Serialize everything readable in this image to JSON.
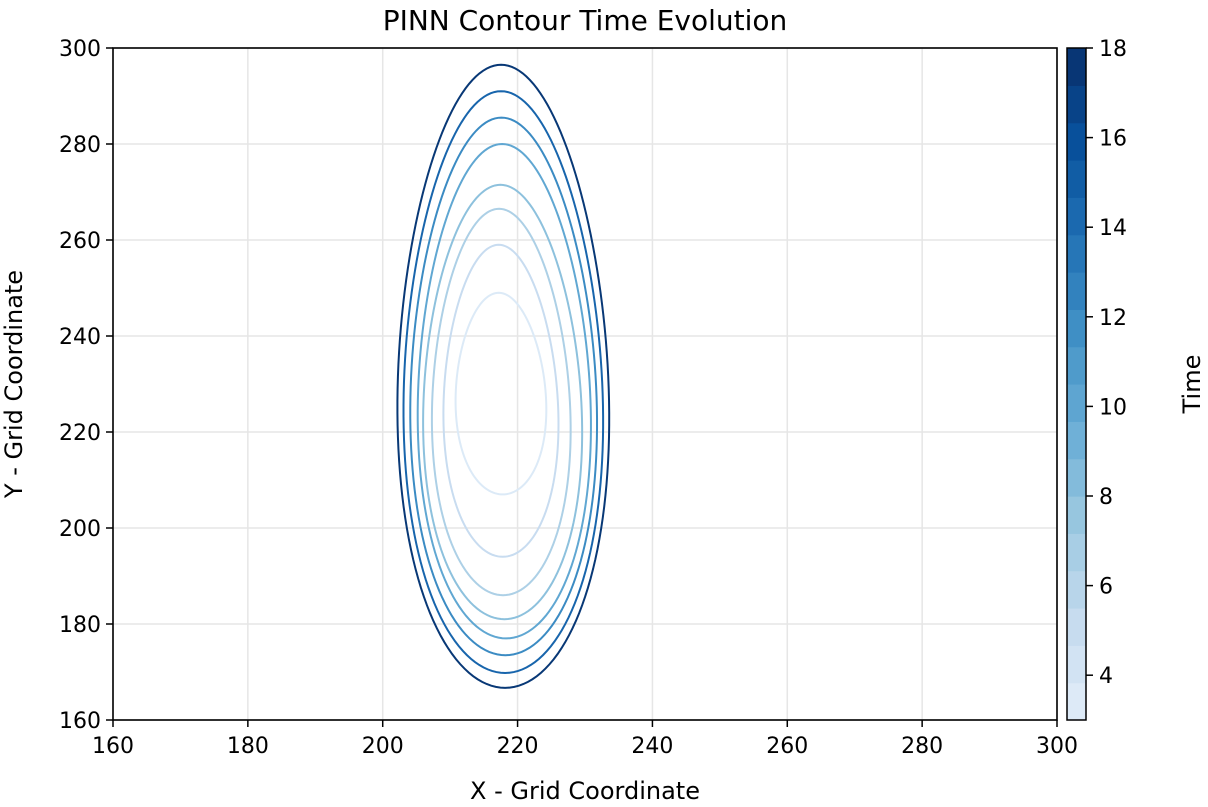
{
  "chart_data": {
    "type": "contour",
    "title": "PINN Contour Time Evolution",
    "xlabel": "X - Grid Coordinate",
    "ylabel": "Y - Grid Coordinate",
    "xlim": [
      160,
      300
    ],
    "ylim": [
      160,
      300
    ],
    "xticks": [
      160,
      180,
      200,
      220,
      240,
      260,
      280,
      300
    ],
    "yticks": [
      160,
      180,
      200,
      220,
      240,
      260,
      280,
      300
    ],
    "grid": true,
    "colorbar": {
      "label": "Time",
      "range": [
        3,
        18
      ],
      "ticks": [
        4,
        6,
        8,
        10,
        12,
        14,
        16,
        18
      ],
      "colormap": "Blues",
      "color_stops": [
        "#e3eef9",
        "#c6dbef",
        "#9ecae1",
        "#6baed6",
        "#4292c6",
        "#2171b5",
        "#08519c",
        "#08306b"
      ]
    },
    "contours": [
      {
        "time": 3.5,
        "x_min": 210.8,
        "x_max": 224.2,
        "y_min": 207.0,
        "y_max": 249.0
      },
      {
        "time": 5.0,
        "x_min": 209.0,
        "x_max": 226.0,
        "y_min": 194.0,
        "y_max": 259.0
      },
      {
        "time": 6.5,
        "x_min": 207.3,
        "x_max": 227.8,
        "y_min": 186.0,
        "y_max": 266.5
      },
      {
        "time": 8.0,
        "x_min": 206.0,
        "x_max": 229.5,
        "y_min": 181.0,
        "y_max": 271.5
      },
      {
        "time": 10.0,
        "x_min": 205.2,
        "x_max": 230.8,
        "y_min": 177.0,
        "y_max": 280.0
      },
      {
        "time": 12.0,
        "x_min": 204.1,
        "x_max": 231.7,
        "y_min": 173.5,
        "y_max": 285.5
      },
      {
        "time": 14.5,
        "x_min": 203.1,
        "x_max": 232.6,
        "y_min": 169.8,
        "y_max": 291.0
      },
      {
        "time": 17.5,
        "x_min": 202.2,
        "x_max": 233.5,
        "y_min": 166.7,
        "y_max": 296.5
      }
    ]
  }
}
